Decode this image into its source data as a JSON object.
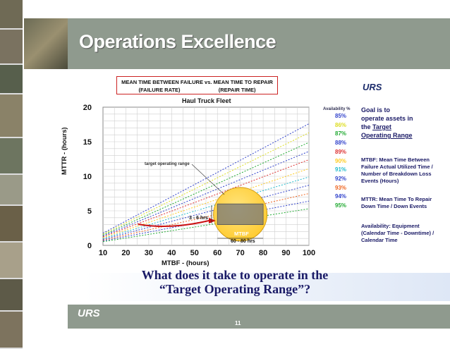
{
  "slide": {
    "title": "Operations Excellence",
    "legend_line1": "MEAN TIME BETWEEN FAILURE vs. MEAN TIME TO REPAIR",
    "legend_line2": "(FAILURE RATE)                          (REPAIR TIME)",
    "logo_text": "URS",
    "question_line1": "What does it take to operate in the",
    "question_line2": "“Target Operating Range”?",
    "page_number": "11"
  },
  "availability": {
    "title": "Availability %",
    "items": [
      {
        "label": "85%",
        "color": "#3344cc"
      },
      {
        "label": "86%",
        "color": "#dddd22"
      },
      {
        "label": "87%",
        "color": "#22aa33"
      },
      {
        "label": "88%",
        "color": "#3344cc"
      },
      {
        "label": "89%",
        "color": "#dd3333"
      },
      {
        "label": "90%",
        "color": "#ffcc22"
      },
      {
        "label": "91%",
        "color": "#22bbcc"
      },
      {
        "label": "92%",
        "color": "#3344cc"
      },
      {
        "label": "93%",
        "color": "#ee6622"
      },
      {
        "label": "94%",
        "color": "#3344cc"
      },
      {
        "label": "95%",
        "color": "#22aa33"
      }
    ]
  },
  "notes": {
    "goal_line1": "Goal is  to",
    "goal_line2": "operate assets in",
    "goal_line3": "the ",
    "goal_link1": "Target",
    "goal_link2": "Operating Range",
    "mtbf_def": "MTBF: Mean Time Between Failure Actual Utilized Time / Number of Breakdown Loss Events (Hours)",
    "mttr_def": "MTTR: Mean Time To Repair Down Time / Down Events",
    "availability_def": "Availability: Equipment (Calendar Time - Downtime) / Calendar Time"
  },
  "chart_data": {
    "type": "line",
    "title": "Haul Truck Fleet",
    "xlabel": "MTBF - (hours)",
    "ylabel": "MTTR - (hours)",
    "xlim": [
      10,
      100
    ],
    "ylim": [
      0,
      20
    ],
    "x_ticks": [
      "10",
      "20",
      "30",
      "40",
      "50",
      "60",
      "70",
      "80",
      "90",
      "100"
    ],
    "y_ticks": [
      "0",
      "5",
      "10",
      "15",
      "20"
    ],
    "grid": true,
    "series": [
      {
        "name": "85%",
        "x": [
          10,
          100
        ],
        "y": [
          1.76,
          17.6
        ],
        "color": "#3344cc"
      },
      {
        "name": "86%",
        "x": [
          10,
          100
        ],
        "y": [
          1.63,
          16.3
        ],
        "color": "#dddd22"
      },
      {
        "name": "87%",
        "x": [
          10,
          100
        ],
        "y": [
          1.49,
          14.9
        ],
        "color": "#22aa33"
      },
      {
        "name": "88%",
        "x": [
          10,
          100
        ],
        "y": [
          1.36,
          13.6
        ],
        "color": "#3344cc"
      },
      {
        "name": "89%",
        "x": [
          10,
          100
        ],
        "y": [
          1.24,
          12.4
        ],
        "color": "#dd3333"
      },
      {
        "name": "90%",
        "x": [
          10,
          100
        ],
        "y": [
          1.11,
          11.1
        ],
        "color": "#ffcc22"
      },
      {
        "name": "91%",
        "x": [
          10,
          100
        ],
        "y": [
          0.99,
          9.9
        ],
        "color": "#22bbcc"
      },
      {
        "name": "92%",
        "x": [
          10,
          100
        ],
        "y": [
          0.87,
          8.7
        ],
        "color": "#3344cc"
      },
      {
        "name": "93%",
        "x": [
          10,
          100
        ],
        "y": [
          0.75,
          7.5
        ],
        "color": "#ee6622"
      },
      {
        "name": "94%",
        "x": [
          10,
          100
        ],
        "y": [
          0.64,
          6.4
        ],
        "color": "#3344cc"
      },
      {
        "name": "95%",
        "x": [
          10,
          100
        ],
        "y": [
          0.53,
          5.3
        ],
        "color": "#22aa33"
      }
    ],
    "target_range": {
      "mtbf": [
        60,
        80
      ],
      "mttr": [
        3,
        6
      ]
    },
    "annotations": {
      "target_label": "target operating range",
      "mttr_label1": "MTTR",
      "mttr_label2": "3 - 6 hrs",
      "mtbf_label1": "MTBF",
      "mtbf_label2": "60 - 80 hrs"
    },
    "colors": {
      "circle": "#ffcc33",
      "box": "#777777",
      "arrow": "#cc1111"
    }
  }
}
